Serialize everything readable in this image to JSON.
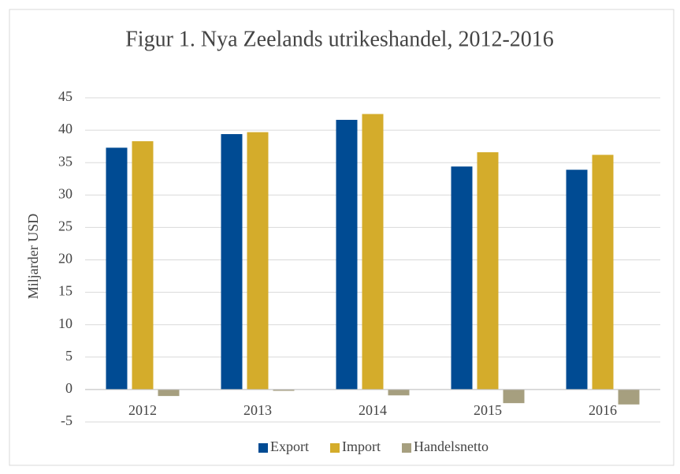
{
  "chart_data": {
    "type": "bar",
    "title": "Figur 1. Nya Zeelands utrikeshandel, 2012-2016",
    "y_label": "Miljarder USD",
    "categories": [
      "2012",
      "2013",
      "2014",
      "2015",
      "2016"
    ],
    "series": [
      {
        "name": "Export",
        "color": "#004b93",
        "values": [
          37.3,
          39.4,
          41.6,
          34.4,
          33.9
        ]
      },
      {
        "name": "Import",
        "color": "#d4ac2b",
        "values": [
          38.3,
          39.7,
          42.5,
          36.6,
          36.2
        ]
      },
      {
        "name": "Handelsnetto",
        "color": "#a69f7f",
        "values": [
          -1.0,
          -0.2,
          -0.9,
          -2.1,
          -2.3
        ]
      }
    ],
    "ylim": [
      -5,
      45
    ],
    "yticks": [
      -5,
      0,
      5,
      10,
      15,
      20,
      25,
      30,
      35,
      40,
      45
    ],
    "grid": true,
    "legend": "bottom"
  }
}
